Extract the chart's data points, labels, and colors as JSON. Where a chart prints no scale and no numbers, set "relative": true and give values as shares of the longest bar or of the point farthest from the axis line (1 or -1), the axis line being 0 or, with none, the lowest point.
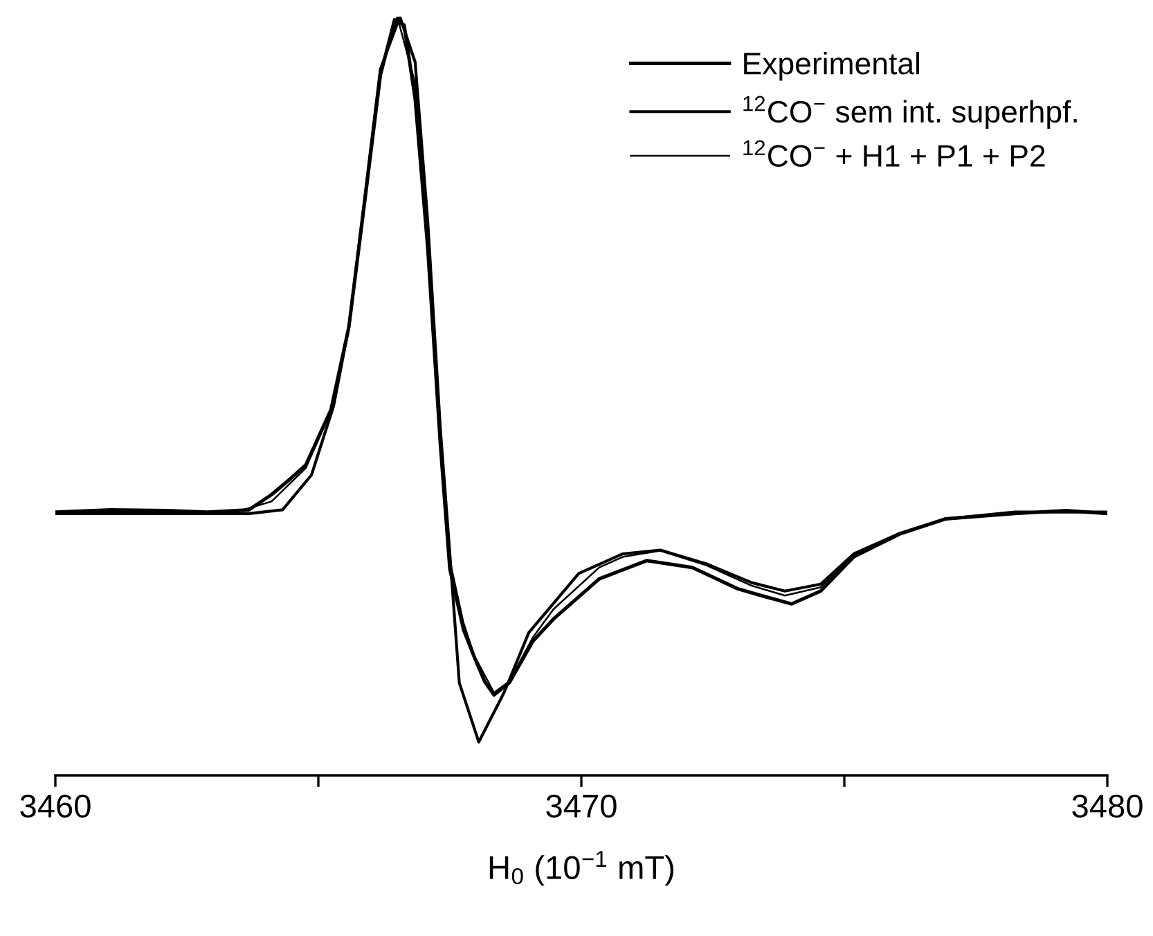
{
  "chart_data": {
    "type": "line",
    "relative": true,
    "xlabel": "H$_{0}$ (10$^{−1}$ mT)",
    "xlim": [
      3460,
      3480
    ],
    "xticks": [
      3460,
      {
        "value": 3465,
        "label": null
      },
      3470,
      {
        "value": 3475,
        "label": null
      },
      3480
    ],
    "legend": "top right",
    "grid": false,
    "marker": "none",
    "line_style": "solid",
    "series": [
      {
        "name": "Experimental",
        "color": "#000000",
        "x": [
          3460.0,
          3461.05,
          3462.11,
          3462.89,
          3463.68,
          3464.11,
          3464.47,
          3464.76,
          3465.24,
          3465.58,
          3465.89,
          3466.18,
          3466.45,
          3466.63,
          3466.84,
          3467.08,
          3467.32,
          3467.5,
          3467.76,
          3467.97,
          3468.16,
          3468.34,
          3468.63,
          3469.08,
          3469.47,
          3470.34,
          3471.24,
          3472.11,
          3472.97,
          3473.42,
          3474.0,
          3474.55,
          3475.18,
          3476.05,
          3476.92,
          3478.24,
          3479.21,
          3480.0
        ],
        "values": [
          0.347,
          0.35,
          0.349,
          0.347,
          0.35,
          0.37,
          0.391,
          0.409,
          0.482,
          0.591,
          0.761,
          0.923,
          0.996,
          0.989,
          0.892,
          0.695,
          0.436,
          0.272,
          0.192,
          0.155,
          0.124,
          0.106,
          0.122,
          0.177,
          0.206,
          0.259,
          0.283,
          0.274,
          0.246,
          0.237,
          0.226,
          0.243,
          0.288,
          0.318,
          0.338,
          0.345,
          0.349,
          0.345
        ]
      },
      {
        "name": "$^{12}$CO$^{−}$ sem int. superhpf.",
        "color": "#000000",
        "x": [
          3460.0,
          3463.68,
          3464.32,
          3464.87,
          3465.29,
          3465.58,
          3465.89,
          3466.18,
          3466.55,
          3466.84,
          3467.08,
          3467.32,
          3467.5,
          3467.68,
          3468.05,
          3468.53,
          3469.0,
          3469.95,
          3470.79,
          3471.5,
          3472.37,
          3473.24,
          3473.87,
          3474.55,
          3475.18,
          3476.05,
          3476.92,
          3478.24,
          3480.0
        ],
        "values": [
          0.345,
          0.345,
          0.35,
          0.396,
          0.487,
          0.591,
          0.766,
          0.931,
          1.0,
          0.94,
          0.73,
          0.456,
          0.292,
          0.122,
          0.044,
          0.109,
          0.188,
          0.266,
          0.292,
          0.297,
          0.279,
          0.254,
          0.243,
          0.252,
          0.292,
          0.319,
          0.338,
          0.347,
          0.347
        ]
      },
      {
        "name": "$^{12}$CO$^{−}$ + H1 + P1 + P2",
        "color": "#000000",
        "x": [
          3460.0,
          3463.42,
          3464.11,
          3464.76,
          3465.24,
          3465.58,
          3465.89,
          3466.18,
          3466.5,
          3466.84,
          3467.08,
          3467.32,
          3467.5,
          3467.76,
          3467.97,
          3468.34,
          3468.63,
          3469.08,
          3469.47,
          3470.34,
          3470.79,
          3471.5,
          3472.37,
          3473.24,
          3473.87,
          3474.55,
          3475.18,
          3476.05,
          3476.92,
          3478.24,
          3480.0
        ],
        "values": [
          0.347,
          0.347,
          0.361,
          0.405,
          0.48,
          0.591,
          0.763,
          0.927,
          1.0,
          0.912,
          0.712,
          0.447,
          0.283,
          0.201,
          0.157,
          0.109,
          0.124,
          0.182,
          0.219,
          0.274,
          0.288,
          0.296,
          0.277,
          0.25,
          0.237,
          0.248,
          0.29,
          0.319,
          0.338,
          0.347,
          0.347
        ]
      }
    ]
  }
}
